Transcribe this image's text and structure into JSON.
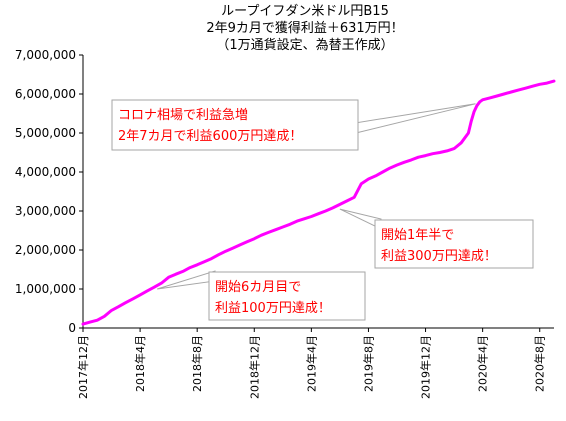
{
  "chart_data": {
    "type": "line",
    "title_lines": [
      "ループイフダン米ドル円B15",
      "2年9カ月で獲得利益＋631万円！",
      "（1万通貨設定、為替王作成）"
    ],
    "xlabel": "",
    "ylabel": "",
    "ylim": [
      0,
      7000000
    ],
    "yticks": [
      0,
      1000000,
      2000000,
      3000000,
      4000000,
      5000000,
      6000000,
      7000000
    ],
    "ytick_labels": [
      "0",
      "1,000,000",
      "2,000,000",
      "3,000,000",
      "4,000,000",
      "5,000,000",
      "6,000,000",
      "7,000,000"
    ],
    "xlim": [
      0,
      33
    ],
    "xticks": [
      {
        "pos": 0,
        "label": "2017年12月"
      },
      {
        "pos": 4,
        "label": "2018年4月"
      },
      {
        "pos": 8,
        "label": "2018年8月"
      },
      {
        "pos": 12,
        "label": "2018年12月"
      },
      {
        "pos": 16,
        "label": "2019年4月"
      },
      {
        "pos": 20,
        "label": "2019年8月"
      },
      {
        "pos": 24,
        "label": "2019年12月"
      },
      {
        "pos": 28,
        "label": "2020年4月"
      },
      {
        "pos": 32,
        "label": "2020年8月"
      }
    ],
    "grid": false,
    "legend": "none",
    "series": [
      {
        "color": "#ff00ff",
        "x": [
          0,
          0.5,
          1,
          1.5,
          2,
          2.5,
          3,
          3.5,
          4,
          4.5,
          5,
          5.5,
          6,
          6.5,
          7,
          7.5,
          8,
          8.5,
          9,
          9.5,
          10,
          10.5,
          11,
          11.5,
          12,
          12.5,
          13,
          13.5,
          14,
          14.5,
          15,
          15.5,
          16,
          16.5,
          17,
          17.5,
          18,
          18.5,
          19,
          19.5,
          20,
          20.5,
          21,
          21.5,
          22,
          22.5,
          23,
          23.5,
          24,
          24.5,
          25,
          25.5,
          26,
          26.5,
          27,
          27.2,
          27.4,
          27.6,
          27.8,
          28,
          28.5,
          29,
          29.5,
          30,
          30.5,
          31,
          31.5,
          32,
          32.5,
          33
        ],
        "values": [
          100000,
          150000,
          200000,
          300000,
          450000,
          550000,
          650000,
          750000,
          850000,
          950000,
          1050000,
          1150000,
          1300000,
          1380000,
          1450000,
          1550000,
          1620000,
          1700000,
          1780000,
          1880000,
          1970000,
          2050000,
          2130000,
          2210000,
          2290000,
          2380000,
          2450000,
          2520000,
          2590000,
          2660000,
          2740000,
          2800000,
          2860000,
          2930000,
          3000000,
          3080000,
          3170000,
          3260000,
          3350000,
          3700000,
          3820000,
          3900000,
          4000000,
          4100000,
          4180000,
          4250000,
          4310000,
          4380000,
          4420000,
          4470000,
          4500000,
          4540000,
          4600000,
          4750000,
          5000000,
          5300000,
          5550000,
          5700000,
          5800000,
          5850000,
          5900000,
          5950000,
          6000000,
          6050000,
          6100000,
          6150000,
          6200000,
          6250000,
          6280000,
          6330000
        ]
      }
    ],
    "annotations": [
      {
        "lines": [
          "コロナ相場で利益急増",
          "2年7カ月で利益600万円達成！"
        ],
        "target": [
          27.5,
          5750000
        ]
      },
      {
        "lines": [
          "開始1年半で",
          "利益300万円達成！"
        ],
        "target": [
          18,
          3050000
        ]
      },
      {
        "lines": [
          "開始6カ月目で",
          "利益100万円達成！"
        ],
        "target": [
          5.2,
          1000000
        ]
      }
    ]
  }
}
